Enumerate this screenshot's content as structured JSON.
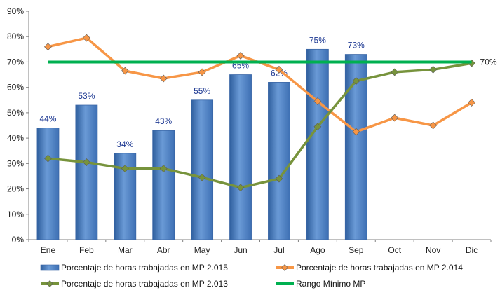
{
  "chart_data": {
    "type": "bar+line",
    "categories": [
      "Ene",
      "Feb",
      "Mar",
      "Abr",
      "May",
      "Jun",
      "Jul",
      "Ago",
      "Sep",
      "Oct",
      "Nov",
      "Dic"
    ],
    "ylim": [
      0,
      90
    ],
    "yticks": [
      0,
      10,
      20,
      30,
      40,
      50,
      60,
      70,
      80,
      90
    ],
    "ytick_labels": [
      "0%",
      "10%",
      "20%",
      "30%",
      "40%",
      "50%",
      "60%",
      "70%",
      "80%",
      "90%"
    ],
    "grid": false,
    "legend_position": "bottom",
    "series": [
      {
        "name": "Porcentaje de horas trabajadas en MP 2.015",
        "kind": "bar",
        "color": "#4f81bd",
        "values": [
          44,
          53,
          34,
          43,
          55,
          65,
          62,
          75,
          73,
          null,
          null,
          null
        ],
        "data_labels": [
          "44%",
          "53%",
          "34%",
          "43%",
          "55%",
          "65%",
          "62%",
          "75%",
          "73%",
          "",
          "",
          ""
        ]
      },
      {
        "name": "Porcentaje de horas trabajadas en MP 2.014",
        "kind": "line",
        "marker": "diamond",
        "color": "#f79646",
        "values": [
          76,
          79.5,
          66.5,
          63.5,
          66,
          72.5,
          67,
          54.5,
          42.5,
          48,
          45,
          54
        ]
      },
      {
        "name": "Porcentaje de horas trabajadas en MP 2.013",
        "kind": "line",
        "marker": "diamond",
        "color": "#77933c",
        "values": [
          32,
          30.5,
          28,
          28,
          24.5,
          20.5,
          24,
          44.5,
          62.5,
          66,
          67,
          69.5
        ]
      },
      {
        "name": "Rango Mínimo MP",
        "kind": "line",
        "marker": "none",
        "color": "#00b050",
        "values": [
          70,
          70,
          70,
          70,
          70,
          70,
          70,
          70,
          70,
          70,
          70,
          70
        ],
        "end_label": "70%"
      }
    ]
  }
}
